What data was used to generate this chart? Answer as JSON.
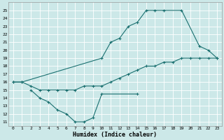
{
  "bg_color": "#cce8e8",
  "grid_color": "#ffffff",
  "line_color": "#1a7070",
  "line1": {
    "x": [
      0,
      1,
      10,
      11,
      12,
      13,
      14,
      15,
      16,
      17,
      19,
      21,
      22,
      23
    ],
    "y": [
      16,
      16,
      19,
      21,
      21.5,
      23,
      23.5,
      25,
      25,
      25,
      25,
      20.5,
      20,
      19
    ]
  },
  "line2": {
    "x": [
      2,
      3,
      4,
      5,
      6,
      7,
      8,
      9,
      10,
      14
    ],
    "y": [
      15,
      14,
      13.5,
      12.5,
      12,
      11,
      11,
      11.5,
      14.5,
      14.5
    ]
  },
  "line3": {
    "x": [
      0,
      1,
      2,
      3,
      4,
      5,
      6,
      7,
      8,
      9,
      10,
      11,
      12,
      13,
      14,
      15,
      16,
      17,
      18,
      19,
      20,
      21,
      22,
      23
    ],
    "y": [
      16,
      16,
      15.5,
      15,
      15,
      15,
      15,
      15,
      15.5,
      15.5,
      15.5,
      16,
      16.5,
      17,
      17.5,
      18,
      18,
      18.5,
      18.5,
      19,
      19,
      19,
      19,
      19
    ]
  },
  "xlim": [
    -0.5,
    23.5
  ],
  "ylim": [
    10.5,
    26
  ],
  "xticks": [
    0,
    1,
    2,
    3,
    4,
    5,
    6,
    7,
    8,
    9,
    10,
    11,
    12,
    13,
    14,
    15,
    16,
    17,
    18,
    19,
    20,
    21,
    22,
    23
  ],
  "yticks": [
    11,
    12,
    13,
    14,
    15,
    16,
    17,
    18,
    19,
    20,
    21,
    22,
    23,
    24,
    25
  ],
  "xlabel": "Humidex (Indice chaleur)"
}
